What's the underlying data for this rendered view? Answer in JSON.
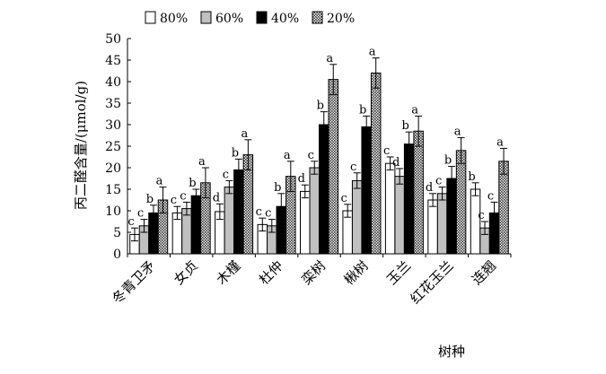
{
  "chart_data": {
    "type": "bar",
    "xlabel": "树种",
    "ylabel": "丙二醛含量/(μmol/g)",
    "ylim": [
      0,
      50
    ],
    "yticks": [
      0,
      5,
      10,
      15,
      20,
      25,
      30,
      35,
      40,
      45,
      50
    ],
    "grid": false,
    "legend_position": "top",
    "categories": [
      "冬青卫矛",
      "女贞",
      "木槿",
      "杜仲",
      "栾树",
      "楸树",
      "玉兰",
      "红花玉兰",
      "连翘"
    ],
    "series": [
      {
        "name": "80%",
        "pattern": "white",
        "values": [
          4.5,
          9.5,
          9.8,
          6.8,
          14.5,
          10.0,
          21.0,
          12.5,
          15.0
        ],
        "errors": [
          1.5,
          1.5,
          1.8,
          1.5,
          1.5,
          1.5,
          1.5,
          1.5,
          1.5
        ],
        "labels": [
          "c",
          "c",
          "d",
          "c",
          "d",
          "c",
          "c",
          "d",
          "b"
        ]
      },
      {
        "name": "60%",
        "pattern": "gray",
        "values": [
          6.5,
          10.5,
          15.5,
          6.5,
          20.0,
          17.0,
          18.0,
          14.0,
          6.0
        ],
        "errors": [
          1.5,
          1.5,
          1.5,
          1.5,
          1.5,
          1.8,
          1.8,
          1.5,
          1.5
        ],
        "labels": [
          "c",
          "c",
          "c",
          "c",
          "c",
          "c",
          "d",
          "c",
          "c"
        ]
      },
      {
        "name": "40%",
        "pattern": "black",
        "values": [
          9.5,
          13.5,
          19.5,
          11.0,
          30.0,
          29.5,
          25.5,
          17.5,
          9.5
        ],
        "errors": [
          1.8,
          1.5,
          2.5,
          3.0,
          3.0,
          2.5,
          2.8,
          2.8,
          2.5
        ],
        "labels": [
          "b",
          "b",
          "b",
          "b",
          "b",
          "b",
          "b",
          "b",
          "c"
        ]
      },
      {
        "name": "20%",
        "pattern": "hatched",
        "values": [
          12.5,
          16.5,
          23.0,
          18.0,
          40.5,
          42.0,
          28.5,
          24.0,
          21.5
        ],
        "errors": [
          3.0,
          3.5,
          3.5,
          3.5,
          3.5,
          3.5,
          3.5,
          3.0,
          3.0
        ],
        "labels": [
          "a",
          "a",
          "a",
          "a",
          "a",
          "a",
          "a",
          "a",
          "a"
        ]
      }
    ]
  }
}
